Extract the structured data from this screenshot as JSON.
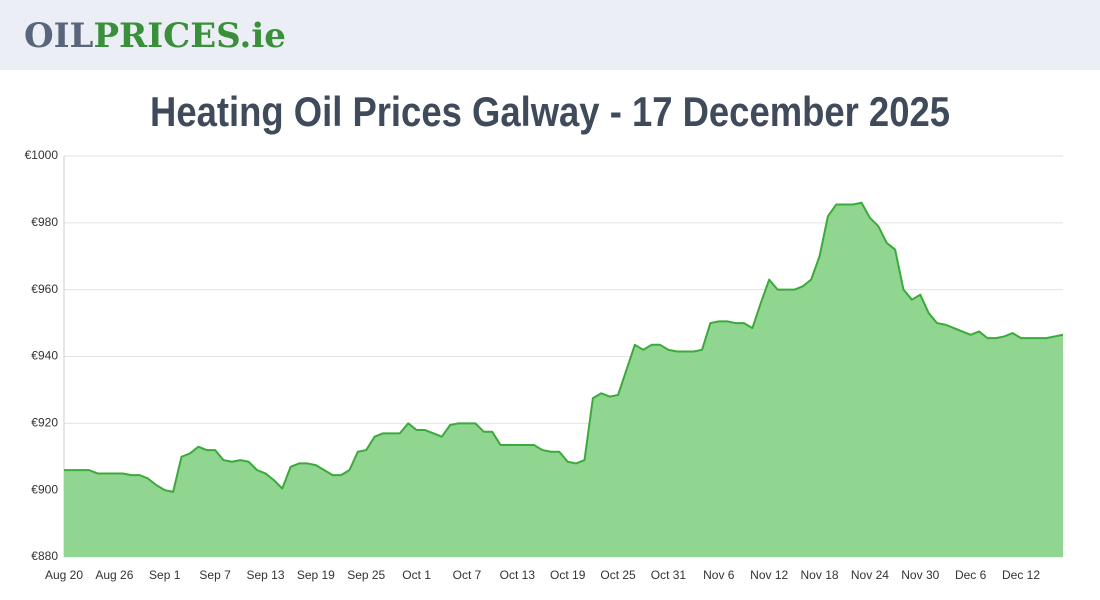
{
  "header": {
    "logo_left": "OIL",
    "logo_right": "PRICES.ie"
  },
  "chart_data": {
    "type": "area",
    "title": "Heating Oil Prices Galway - 17 December 2025",
    "categories": [
      "Aug 20",
      null,
      null,
      null,
      null,
      null,
      "Aug 26",
      null,
      null,
      null,
      null,
      null,
      "Sep 1",
      null,
      null,
      null,
      null,
      null,
      "Sep 7",
      null,
      null,
      null,
      null,
      null,
      "Sep 13",
      null,
      null,
      null,
      null,
      null,
      "Sep 19",
      null,
      null,
      null,
      null,
      null,
      "Sep 25",
      null,
      null,
      null,
      null,
      null,
      "Oct 1",
      null,
      null,
      null,
      null,
      null,
      "Oct 7",
      null,
      null,
      null,
      null,
      null,
      "Oct 13",
      null,
      null,
      null,
      null,
      null,
      "Oct 19",
      null,
      null,
      null,
      null,
      null,
      "Oct 25",
      null,
      null,
      null,
      null,
      null,
      "Oct 31",
      null,
      null,
      null,
      null,
      null,
      "Nov 6",
      null,
      null,
      null,
      null,
      null,
      "Nov 12",
      null,
      null,
      null,
      null,
      null,
      "Nov 18",
      null,
      null,
      null,
      null,
      null,
      "Nov 24",
      null,
      null,
      null,
      null,
      null,
      "Nov 30",
      null,
      null,
      null,
      null,
      null,
      "Dec 6",
      null,
      null,
      null,
      null,
      null,
      "Dec 12",
      null,
      null,
      null,
      null,
      null
    ],
    "values": [
      906,
      906,
      906,
      906,
      905,
      905,
      905,
      905,
      904.5,
      904.5,
      903.5,
      901.5,
      900,
      899.5,
      910,
      911,
      913,
      912,
      912,
      909,
      908.5,
      909,
      908.5,
      906,
      905,
      903,
      900.5,
      907,
      908,
      908,
      907.5,
      906,
      904.5,
      904.5,
      906,
      911.5,
      912,
      916,
      917,
      917,
      917,
      920,
      918,
      918,
      917,
      916,
      919.5,
      920,
      920,
      920,
      917.5,
      917.5,
      913.5,
      913.5,
      913.5,
      913.5,
      913.5,
      912,
      911.5,
      911.5,
      908.5,
      908,
      909,
      927.5,
      929,
      928,
      928.5,
      936,
      943.5,
      942,
      943.5,
      943.5,
      942,
      941.5,
      941.5,
      941.5,
      942,
      950,
      950.5,
      950.5,
      950,
      950,
      948.5,
      956,
      963,
      960,
      960,
      960,
      961,
      963,
      970,
      982,
      985.5,
      985.5,
      985.5,
      986,
      981.5,
      979,
      974,
      972,
      960,
      957,
      958.5,
      953,
      950,
      949.5,
      948.5,
      947.5,
      946.5,
      947.5,
      945.5,
      945.5,
      946,
      947,
      945.5,
      945.5,
      945.5,
      945.5,
      946,
      946.5
    ],
    "color": "#3aaa3a",
    "fill_color": "#90d690",
    "ylim": [
      880,
      1000
    ],
    "yticks": [
      {
        "value": 880,
        "label": "€880"
      },
      {
        "value": 900,
        "label": "€900"
      },
      {
        "value": 920,
        "label": "€920"
      },
      {
        "value": 940,
        "label": "€940"
      },
      {
        "value": 960,
        "label": "€960"
      },
      {
        "value": 980,
        "label": "€980"
      },
      {
        "value": 1000,
        "label": "€1000"
      }
    ],
    "grid": true
  }
}
